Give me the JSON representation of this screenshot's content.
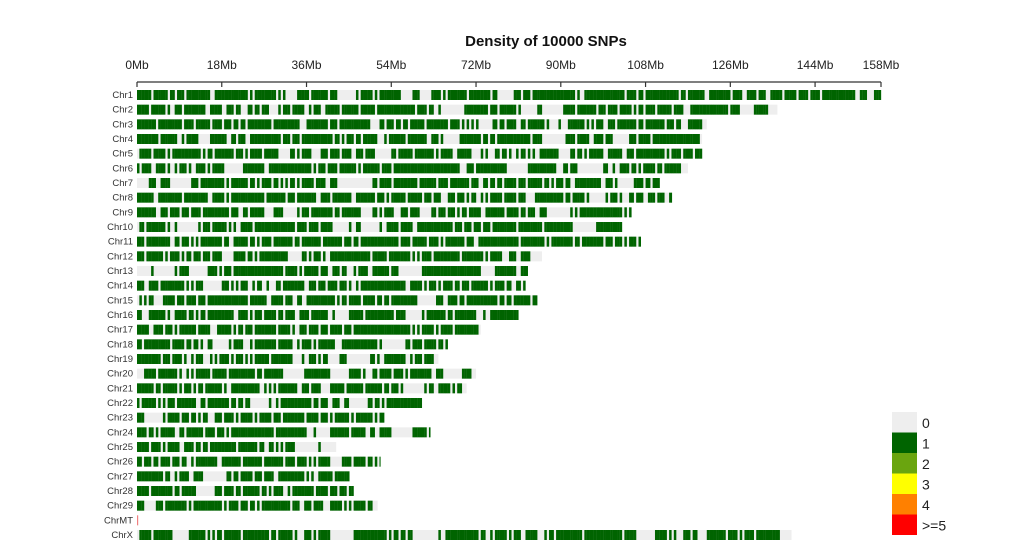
{
  "chart_data": {
    "type": "heatmap",
    "title": "Density of 10000 SNPs",
    "x_unit": "Mb",
    "xlim": [
      0,
      158
    ],
    "x_ticks": [
      "0Mb",
      "18Mb",
      "36Mb",
      "54Mb",
      "72Mb",
      "90Mb",
      "108Mb",
      "126Mb",
      "144Mb",
      "158Mb"
    ],
    "x_tick_values": [
      0,
      18,
      36,
      54,
      72,
      90,
      108,
      126,
      144,
      158
    ],
    "chromosomes": [
      {
        "name": "Chr1",
        "length": 158
      },
      {
        "name": "Chr2",
        "length": 136
      },
      {
        "name": "Chr3",
        "length": 121
      },
      {
        "name": "Chr4",
        "length": 120
      },
      {
        "name": "Chr5",
        "length": 120
      },
      {
        "name": "Chr6",
        "length": 117
      },
      {
        "name": "Chr7",
        "length": 111
      },
      {
        "name": "Chr8",
        "length": 113.6
      },
      {
        "name": "Chr9",
        "length": 105
      },
      {
        "name": "Chr10",
        "length": 103
      },
      {
        "name": "Chr11",
        "length": 107
      },
      {
        "name": "Chr12",
        "length": 86
      },
      {
        "name": "Chr13",
        "length": 83
      },
      {
        "name": "Chr14",
        "length": 82.5
      },
      {
        "name": "Chr15",
        "length": 85
      },
      {
        "name": "Chr16",
        "length": 81
      },
      {
        "name": "Chr17",
        "length": 73
      },
      {
        "name": "Chr18",
        "length": 66
      },
      {
        "name": "Chr19",
        "length": 64
      },
      {
        "name": "Chr20",
        "length": 72
      },
      {
        "name": "Chr21",
        "length": 70
      },
      {
        "name": "Chr22",
        "length": 60.5
      },
      {
        "name": "Chr23",
        "length": 52.5
      },
      {
        "name": "Chr24",
        "length": 62.3
      },
      {
        "name": "Chr25",
        "length": 42.3
      },
      {
        "name": "Chr26",
        "length": 51.7
      },
      {
        "name": "Chr27",
        "length": 45.1
      },
      {
        "name": "Chr28",
        "length": 46
      },
      {
        "name": "Chr29",
        "length": 51.1
      },
      {
        "name": "ChrMT",
        "length": 0.016
      },
      {
        "name": "ChrX",
        "length": 139
      }
    ],
    "legend": {
      "placement": "bottom-right",
      "entries": [
        {
          "label": "0",
          "color": "#eeeeee"
        },
        {
          "label": "1",
          "color": "#006400"
        },
        {
          "label": "2",
          "color": "#6aa50f"
        },
        {
          "label": "3",
          "color": "#ffff00"
        },
        {
          "label": "4",
          "color": "#ff8000"
        },
        {
          "label": ">=5",
          "color": "#ff0000"
        }
      ]
    },
    "predominant_density": "1",
    "chrMT_color": "#f08080"
  }
}
